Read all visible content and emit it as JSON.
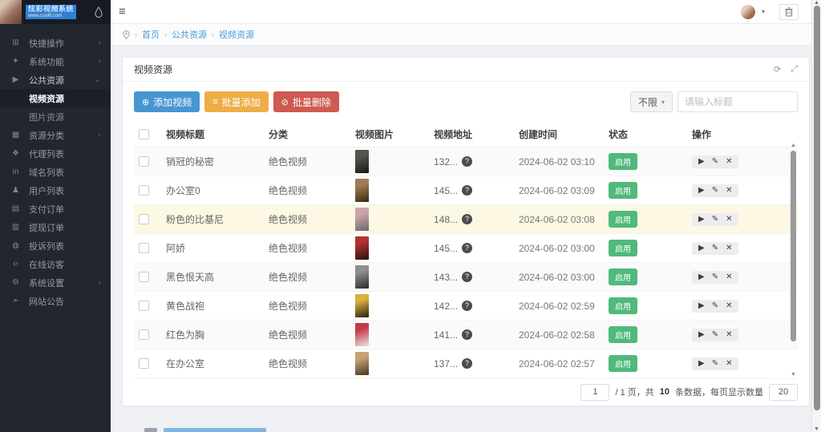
{
  "logo": {
    "title": "炫彩视频系统",
    "subtitle": "www.ccwl8.com"
  },
  "icons": {
    "hamburger": "≡",
    "caret": "▾",
    "refresh": "⟳",
    "expand": "⤢",
    "plus": "⊕",
    "list": "≡",
    "ban": "⊘",
    "play": "▶",
    "edit": "✎",
    "close": "✕",
    "question": "?"
  },
  "breadcrumb": {
    "items": [
      "首页",
      "公共资源",
      "视频资源"
    ]
  },
  "sidebar": {
    "items": [
      {
        "label": "快捷操作",
        "icon": "folder-icon",
        "glyph": "⊞",
        "chevron": "‹"
      },
      {
        "label": "系统功能",
        "icon": "tools-icon",
        "glyph": "✦",
        "chevron": "‹"
      },
      {
        "label": "公共资源",
        "icon": "video-icon",
        "glyph": "▶",
        "chevron": "⌄",
        "open": true
      },
      {
        "label": "视频资源",
        "sub": true,
        "active": true
      },
      {
        "label": "图片资源",
        "sub": true
      },
      {
        "label": "资源分类",
        "icon": "grid-icon",
        "glyph": "▦",
        "chevron": "‹"
      },
      {
        "label": "代理列表",
        "icon": "agents-icon",
        "glyph": "❖"
      },
      {
        "label": "域名列表",
        "icon": "domain-icon",
        "glyph": "in"
      },
      {
        "label": "用户列表",
        "icon": "user-icon",
        "glyph": "♟"
      },
      {
        "label": "支付订单",
        "icon": "payment-icon",
        "glyph": "▤"
      },
      {
        "label": "提现订单",
        "icon": "withdraw-icon",
        "glyph": "▥"
      },
      {
        "label": "投诉列表",
        "icon": "complaint-icon",
        "glyph": "◍"
      },
      {
        "label": "在线访客",
        "icon": "visitors-icon",
        "glyph": "℮"
      },
      {
        "label": "系统设置",
        "icon": "gear-icon",
        "glyph": "⚙",
        "chevron": "‹"
      },
      {
        "label": "网站公告",
        "icon": "announcement-icon",
        "glyph": "➣"
      }
    ]
  },
  "panel": {
    "title": "视频资源"
  },
  "toolbar": {
    "add_video": "添加视频",
    "batch_add": "批量添加",
    "batch_delete": "批量删除",
    "filter_label": "不限",
    "search_placeholder": "请输入标题"
  },
  "table": {
    "headers": [
      "视频标题",
      "分类",
      "视频图片",
      "视频地址",
      "创建时间",
      "状态",
      "操作"
    ],
    "rows": [
      {
        "title": "销冠的秘密",
        "category": "绝色视频",
        "url": "132...",
        "created": "2024-06-02 03:10",
        "status": "启用",
        "thumb": [
          "#55534e",
          "#191917"
        ]
      },
      {
        "title": "办公室0",
        "category": "绝色视频",
        "url": "145...",
        "created": "2024-06-02 03:09",
        "status": "启用",
        "thumb": [
          "#a07c50",
          "#382916"
        ]
      },
      {
        "title": "粉色的比基尼",
        "category": "绝色视频",
        "url": "148...",
        "created": "2024-06-02 03:08",
        "status": "启用",
        "thumb": [
          "#cfa3ab",
          "#6b6870"
        ],
        "highlight": true
      },
      {
        "title": "阿娇",
        "category": "绝色视频",
        "url": "145...",
        "created": "2024-06-02 03:00",
        "status": "启用",
        "thumb": [
          "#b23232",
          "#27100f"
        ]
      },
      {
        "title": "黑色恨天高",
        "category": "绝色视频",
        "url": "143...",
        "created": "2024-06-02 03:00",
        "status": "启用",
        "thumb": [
          "#8f8f90",
          "#2b2b2e"
        ]
      },
      {
        "title": "黄色战袍",
        "category": "绝色视频",
        "url": "142...",
        "created": "2024-06-02 02:59",
        "status": "启用",
        "thumb": [
          "#d9b13b",
          "#261e10"
        ]
      },
      {
        "title": "红色为胸",
        "category": "绝色视频",
        "url": "141...",
        "created": "2024-06-02 02:58",
        "status": "启用",
        "thumb": [
          "#c23a4c",
          "#ece2dd"
        ]
      },
      {
        "title": "在办公室",
        "category": "绝色视频",
        "url": "137...",
        "created": "2024-06-02 02:57",
        "status": "启用",
        "thumb": [
          "#c9a178",
          "#473523"
        ]
      }
    ],
    "partial_row_thumb": [
      "#8d8d8d",
      "#4e4e4e"
    ]
  },
  "pagination": {
    "page": "1",
    "mid1": "/ 1 页，共",
    "total": "10",
    "mid2": "条数据，每页显示数量",
    "per_page": "20"
  }
}
